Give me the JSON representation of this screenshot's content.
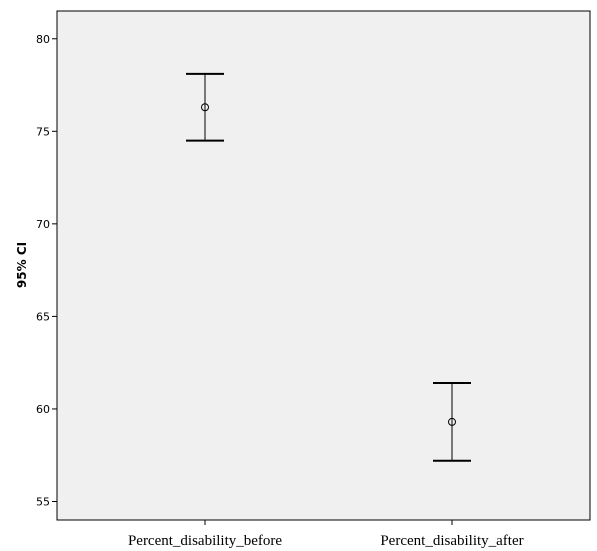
{
  "chart_data": {
    "type": "errorbar",
    "ylabel": "95% CI",
    "xlabel": "",
    "ylim": [
      54,
      81.5
    ],
    "yticks": [
      55,
      60,
      65,
      70,
      75,
      80
    ],
    "yticks_labels": [
      "55",
      "60",
      "65",
      "70",
      "75",
      "80"
    ],
    "categories": [
      "Percent_disability_before",
      "Percent_disability_after"
    ],
    "means": [
      76.3,
      59.3
    ],
    "ci_lower": [
      74.5,
      57.2
    ],
    "ci_upper": [
      78.1,
      61.4
    ],
    "grid": false,
    "colors": {
      "plot_background": "#f0f0f0",
      "marker": "#000000",
      "axis": "#000000"
    }
  }
}
